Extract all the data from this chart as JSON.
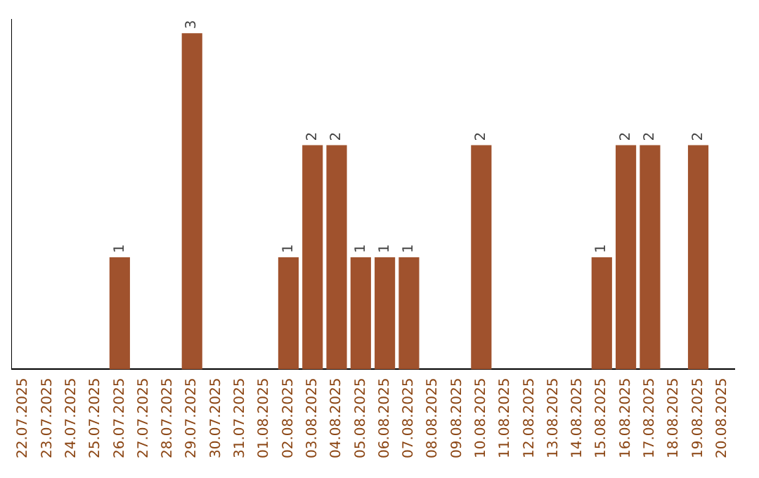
{
  "chart_data": {
    "type": "bar",
    "categories": [
      "22.07.2025",
      "23.07.2025",
      "24.07.2025",
      "25.07.2025",
      "26.07.2025",
      "27.07.2025",
      "28.07.2025",
      "29.07.2025",
      "30.07.2025",
      "31.07.2025",
      "01.08.2025",
      "02.08.2025",
      "03.08.2025",
      "04.08.2025",
      "05.08.2025",
      "06.08.2025",
      "07.08.2025",
      "08.08.2025",
      "09.08.2025",
      "10.08.2025",
      "11.08.2025",
      "12.08.2025",
      "13.08.2025",
      "14.08.2025",
      "15.08.2025",
      "16.08.2025",
      "17.08.2025",
      "18.08.2025",
      "19.08.2025",
      "20.08.2025"
    ],
    "values": [
      0,
      0,
      0,
      0,
      1,
      0,
      0,
      3,
      0,
      0,
      0,
      1,
      2,
      2,
      1,
      1,
      1,
      0,
      0,
      2,
      0,
      0,
      0,
      0,
      1,
      2,
      2,
      0,
      2,
      0
    ],
    "value_labels": [
      null,
      null,
      null,
      null,
      "1",
      null,
      null,
      "3",
      null,
      null,
      null,
      "1",
      "2",
      "2",
      "1",
      "1",
      "1",
      null,
      null,
      "2",
      null,
      null,
      null,
      null,
      "1",
      "2",
      "2",
      null,
      "2",
      null
    ],
    "color": "#a0522d",
    "grid": false,
    "legend": false,
    "tick_labels": "x"
  }
}
